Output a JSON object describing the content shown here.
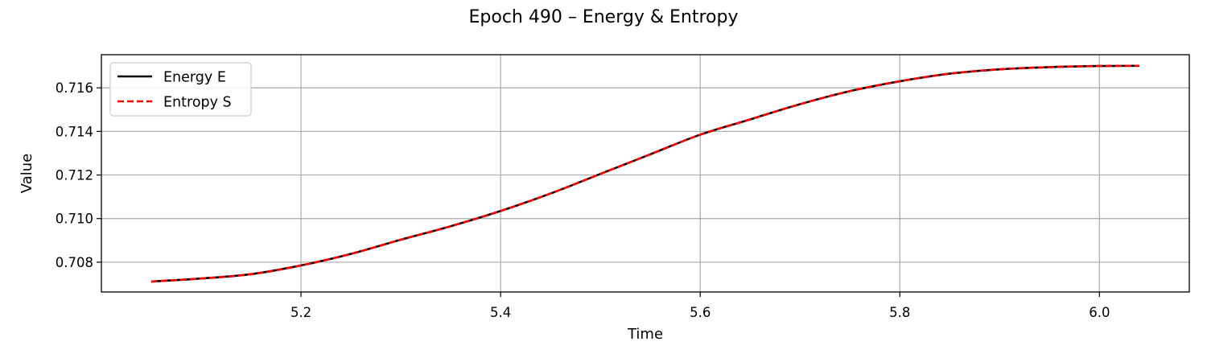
{
  "chart_data": {
    "type": "line",
    "title": "Epoch 490 – Energy & Entropy",
    "xlabel": "Time",
    "ylabel": "Value",
    "xlim": [
      5.0,
      6.09
    ],
    "ylim": [
      0.70663,
      0.71752
    ],
    "xticks": [
      "5.2",
      "5.4",
      "5.6",
      "5.8",
      "6.0"
    ],
    "yticks": [
      "0.708",
      "0.710",
      "0.712",
      "0.714",
      "0.716"
    ],
    "grid": true,
    "legend_position": "top-left",
    "series": [
      {
        "name": "Energy E",
        "color": "#000000",
        "style": "solid",
        "x": [
          5.05,
          5.1,
          5.15,
          5.2,
          5.25,
          5.3,
          5.35,
          5.4,
          5.45,
          5.5,
          5.55,
          5.6,
          5.65,
          5.7,
          5.75,
          5.8,
          5.85,
          5.9,
          5.95,
          6.0,
          6.04
        ],
        "y": [
          0.70711,
          0.70725,
          0.70745,
          0.70785,
          0.70838,
          0.70903,
          0.70965,
          0.71035,
          0.71115,
          0.71205,
          0.71295,
          0.71385,
          0.71455,
          0.71525,
          0.71585,
          0.7163,
          0.71665,
          0.71685,
          0.71695,
          0.717,
          0.71701
        ]
      },
      {
        "name": "Entropy S",
        "color": "#ff0000",
        "style": "dashed",
        "x": [
          5.05,
          5.1,
          5.15,
          5.2,
          5.25,
          5.3,
          5.35,
          5.4,
          5.45,
          5.5,
          5.55,
          5.6,
          5.65,
          5.7,
          5.75,
          5.8,
          5.85,
          5.9,
          5.95,
          6.0,
          6.04
        ],
        "y": [
          0.70711,
          0.70725,
          0.70745,
          0.70785,
          0.70838,
          0.70903,
          0.70965,
          0.71035,
          0.71115,
          0.71205,
          0.71295,
          0.71385,
          0.71455,
          0.71525,
          0.71585,
          0.7163,
          0.71665,
          0.71685,
          0.71695,
          0.717,
          0.71701
        ]
      }
    ]
  }
}
